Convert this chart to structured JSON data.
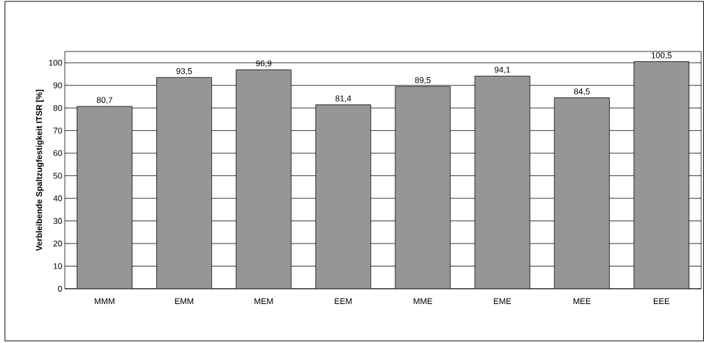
{
  "chart_data": {
    "type": "bar",
    "ylabel": "Verbleibende Spaltzugfestigkeit ITSR [%]",
    "categories": [
      "MMM",
      "EMM",
      "MEM",
      "EEM",
      "MME",
      "EME",
      "MEE",
      "EEE"
    ],
    "values": [
      80.7,
      93.5,
      96.9,
      81.4,
      89.5,
      94.1,
      84.5,
      100.5
    ],
    "value_labels": [
      "80,7",
      "93,5",
      "96,9",
      "81,4",
      "89,5",
      "94,1",
      "84,5",
      "100,5"
    ],
    "color": "#969696",
    "ylim": [
      0,
      105
    ],
    "yticks": [
      0,
      10,
      20,
      30,
      40,
      50,
      60,
      70,
      80,
      90,
      100
    ],
    "grid": "y"
  }
}
